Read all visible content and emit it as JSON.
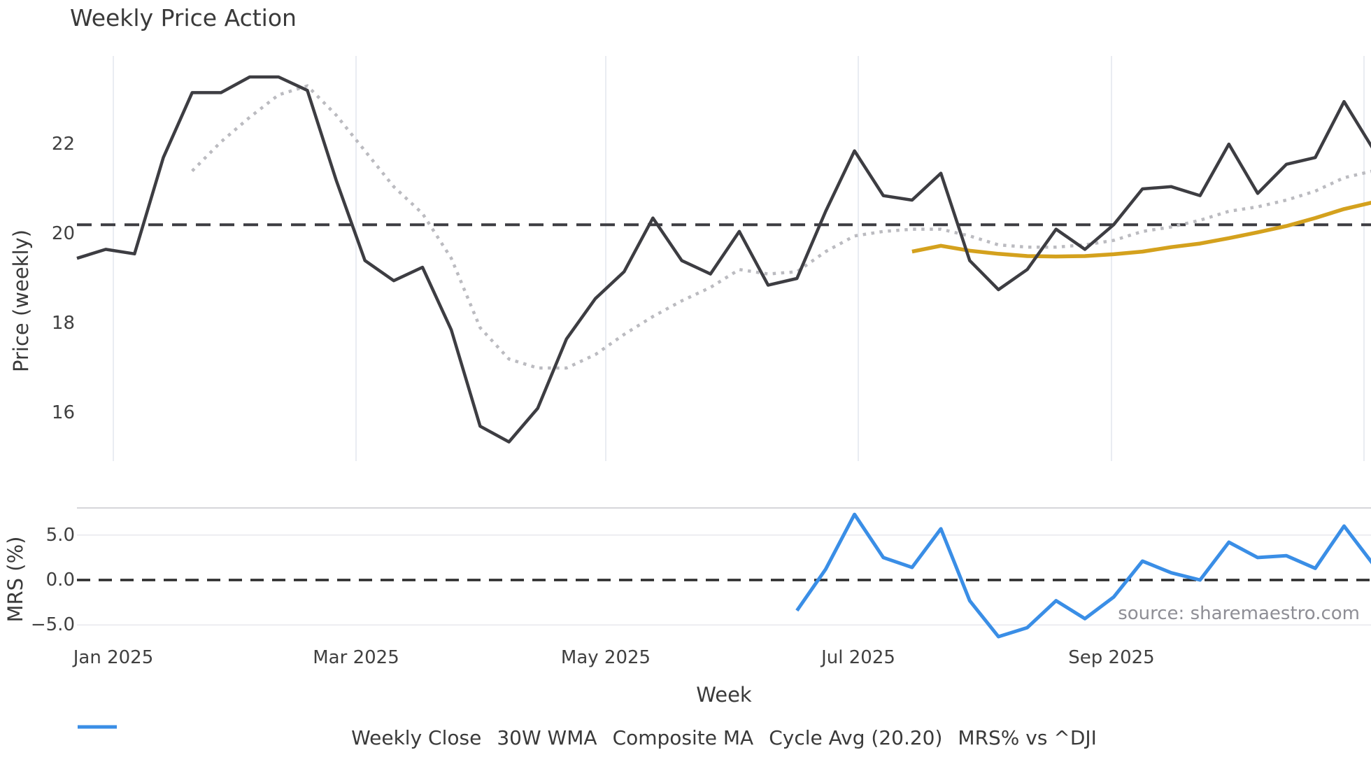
{
  "title": "Weekly Price Action",
  "source_note": "source: sharemaestro.com",
  "colors": {
    "weekly_close": "#3d3d42",
    "wma_30w": "#d4a11d",
    "composite_ma": "#bbbbc0",
    "cycle_avg": "#3d3d42",
    "mrs": "#3a8ee6",
    "mrs_zero": "#2b2b2b",
    "grid": "#e9ecf2",
    "mrs_grid": "#ededf1",
    "panel_border": "#d6d6da",
    "text": "#3a3a3a",
    "muted_text": "#8e8e95"
  },
  "chart_data": {
    "type": "line",
    "title": "Weekly Price Action",
    "xlabel": "Week",
    "x_axis": {
      "label": "Week",
      "ticks": [
        {
          "label": "Jan 2025"
        },
        {
          "label": "Mar 2025"
        },
        {
          "label": "May 2025"
        },
        {
          "label": "Jul 2025"
        },
        {
          "label": "Sep 2025"
        }
      ]
    },
    "price_panel": {
      "ylabel": "Price (weekly)",
      "ylim": [
        14.9,
        24.0
      ],
      "grid": "vertical-only",
      "yticks": [
        {
          "label": "22",
          "value": 22
        },
        {
          "label": "20",
          "value": 20
        },
        {
          "label": "18",
          "value": 18
        },
        {
          "label": "16",
          "value": 16
        }
      ],
      "cycle_avg_value": 20.2
    },
    "mrs_panel": {
      "ylabel": "MRS (%)",
      "ylim": [
        -7.9,
        8.0
      ],
      "zero_line": 0.0,
      "yticks": [
        {
          "label": "5.0",
          "value": 5.0
        },
        {
          "label": "0.0",
          "value": 0.0
        },
        {
          "label": "−5.0",
          "value": -5.0
        }
      ]
    },
    "weeks": [
      "2024-12-23",
      "2024-12-30",
      "2025-01-06",
      "2025-01-13",
      "2025-01-20",
      "2025-01-27",
      "2025-02-03",
      "2025-02-10",
      "2025-02-17",
      "2025-02-24",
      "2025-03-03",
      "2025-03-10",
      "2025-03-17",
      "2025-03-24",
      "2025-03-31",
      "2025-04-07",
      "2025-04-14",
      "2025-04-21",
      "2025-04-28",
      "2025-05-05",
      "2025-05-12",
      "2025-05-19",
      "2025-05-26",
      "2025-06-02",
      "2025-06-09",
      "2025-06-16",
      "2025-06-23",
      "2025-06-30",
      "2025-07-07",
      "2025-07-14",
      "2025-07-21",
      "2025-07-28",
      "2025-08-04",
      "2025-08-11",
      "2025-08-18",
      "2025-08-25",
      "2025-09-01",
      "2025-09-08",
      "2025-09-15",
      "2025-09-22",
      "2025-09-29",
      "2025-10-06",
      "2025-10-13",
      "2025-10-20",
      "2025-10-27",
      "2025-11-03"
    ],
    "series": [
      {
        "name": "Weekly Close",
        "panel": "price",
        "style": "solid",
        "values": [
          19.45,
          19.65,
          19.55,
          21.7,
          23.15,
          23.15,
          23.5,
          23.5,
          23.2,
          21.2,
          19.4,
          18.95,
          19.25,
          17.85,
          15.7,
          15.35,
          16.1,
          17.65,
          18.55,
          19.15,
          20.35,
          19.4,
          19.1,
          20.05,
          18.85,
          19.0,
          20.5,
          21.85,
          20.85,
          20.75,
          21.35,
          19.4,
          18.75,
          19.2,
          20.1,
          19.65,
          20.2,
          21.0,
          21.05,
          20.85,
          22.0,
          20.9,
          21.55,
          21.7,
          22.95,
          21.9
        ]
      },
      {
        "name": "30W WMA",
        "panel": "price",
        "style": "solid",
        "values": [
          null,
          null,
          null,
          null,
          null,
          null,
          null,
          null,
          null,
          null,
          null,
          null,
          null,
          null,
          null,
          null,
          null,
          null,
          null,
          null,
          null,
          null,
          null,
          null,
          null,
          null,
          null,
          null,
          null,
          19.6,
          19.73,
          19.62,
          19.55,
          19.5,
          19.49,
          19.5,
          19.54,
          19.6,
          19.7,
          19.78,
          19.9,
          20.03,
          20.17,
          20.35,
          20.55,
          20.7
        ]
      },
      {
        "name": "Composite MA",
        "panel": "price",
        "style": "dotted",
        "values": [
          null,
          null,
          null,
          null,
          21.4,
          22.05,
          22.6,
          23.1,
          23.3,
          22.65,
          21.85,
          21.05,
          20.45,
          19.45,
          17.9,
          17.2,
          17.0,
          17.0,
          17.3,
          17.75,
          18.15,
          18.5,
          18.8,
          19.2,
          19.1,
          19.15,
          19.6,
          19.95,
          20.05,
          20.1,
          20.1,
          19.95,
          19.75,
          19.7,
          19.7,
          19.75,
          19.85,
          20.05,
          20.15,
          20.3,
          20.5,
          20.6,
          20.75,
          20.95,
          21.25,
          21.4
        ]
      },
      {
        "name": "Cycle Avg (20.20)",
        "panel": "price",
        "style": "dashed",
        "constant": 20.2
      },
      {
        "name": "MRS% vs ^DJI",
        "panel": "mrs",
        "style": "solid",
        "values": [
          null,
          null,
          null,
          null,
          null,
          null,
          null,
          null,
          null,
          null,
          null,
          null,
          null,
          null,
          null,
          null,
          null,
          null,
          null,
          null,
          null,
          null,
          null,
          null,
          null,
          -3.4,
          1.2,
          7.3,
          2.5,
          1.4,
          5.7,
          -2.3,
          -6.3,
          -5.3,
          -2.3,
          -4.3,
          -1.9,
          2.1,
          0.8,
          0.0,
          4.2,
          2.5,
          2.7,
          1.3,
          6.0,
          1.8
        ]
      }
    ],
    "legend": [
      {
        "label": "Weekly Close",
        "color": "#3d3d42",
        "style": "solid"
      },
      {
        "label": "30W WMA",
        "color": "#d4a11d",
        "style": "solid"
      },
      {
        "label": "Composite MA",
        "color": "#bbbbc0",
        "style": "dotted"
      },
      {
        "label": "Cycle Avg (20.20)",
        "color": "#3d3d42",
        "style": "dashed"
      },
      {
        "label": "MRS% vs ^DJI",
        "color": "#3a8ee6",
        "style": "solid"
      }
    ]
  }
}
